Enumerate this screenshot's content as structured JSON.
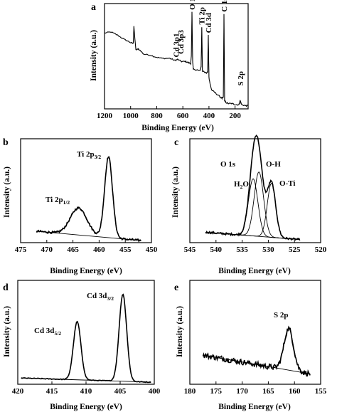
{
  "chart_data": [
    {
      "panel": "a",
      "type": "line",
      "xlabel": "Binding Energy (eV)",
      "ylabel": "Intensity (a.u.)",
      "xlim": [
        1200,
        100
      ],
      "xticks": [
        1200,
        1000,
        800,
        600,
        400,
        200
      ],
      "annotations": [
        "Cd 3p1",
        "Cd 3p3",
        "O 1s",
        "Cd 3d",
        "Ti 2p",
        "C 1s",
        "S 2p"
      ],
      "peaks": [
        {
          "x": 652,
          "y": 0.47,
          "label": "Cd 3p1"
        },
        {
          "x": 618,
          "y": 0.5,
          "label": "Cd 3p3"
        },
        {
          "x": 531,
          "y": 0.92,
          "label": "O 1s"
        },
        {
          "x": 405,
          "y": 0.7,
          "label": "Cd 3d"
        },
        {
          "x": 458,
          "y": 0.78,
          "label": "Ti 2p"
        },
        {
          "x": 284.8,
          "y": 0.9,
          "label": "C 1s"
        },
        {
          "x": 161,
          "y": 0.08,
          "label": "S 2p"
        }
      ],
      "x": [
        1200,
        1150,
        1100,
        1050,
        1000,
        980,
        975,
        960,
        940,
        900,
        850,
        800,
        760,
        700,
        660,
        640,
        610,
        580,
        560,
        540,
        535,
        530,
        525,
        520,
        500,
        470,
        460,
        455,
        450,
        420,
        410,
        405,
        400,
        390,
        380,
        350,
        320,
        300,
        290,
        285,
        280,
        270,
        250,
        220,
        200,
        170,
        161,
        150,
        120,
        100
      ],
      "y": [
        0.72,
        0.73,
        0.7,
        0.66,
        0.63,
        0.62,
        0.78,
        0.56,
        0.57,
        0.52,
        0.51,
        0.49,
        0.48,
        0.48,
        0.46,
        0.47,
        0.45,
        0.45,
        0.44,
        0.43,
        0.5,
        0.92,
        0.45,
        0.38,
        0.37,
        0.36,
        0.4,
        0.78,
        0.36,
        0.34,
        0.35,
        0.7,
        0.3,
        0.23,
        0.18,
        0.15,
        0.12,
        0.1,
        0.11,
        0.9,
        0.08,
        0.06,
        0.05,
        0.05,
        0.04,
        0.04,
        0.08,
        0.04,
        0.03,
        0.03
      ]
    },
    {
      "panel": "b",
      "type": "line",
      "xlabel": "Binding Energy (eV)",
      "ylabel": "Intensity (a.u.)",
      "xlim": [
        475,
        450
      ],
      "xticks": [
        475,
        470,
        465,
        460,
        455,
        450
      ],
      "series": [
        {
          "kind": "measured",
          "peaks": [
            {
              "x": 463.9,
              "h": 0.26,
              "w": 1.6
            },
            {
              "x": 458.2,
              "h": 0.78,
              "w": 0.75
            }
          ],
          "baseline": [
            0.11,
            0.02
          ]
        },
        {
          "kind": "fit",
          "peaks": [
            {
              "x": 463.9,
              "h": 0.26,
              "w": 1.6
            },
            {
              "x": 458.2,
              "h": 0.78,
              "w": 0.75
            }
          ],
          "baseline": [
            0.11,
            0.02
          ]
        }
      ],
      "annotations": [
        {
          "text": "Ti 2p",
          "sub": "3/2"
        },
        {
          "text": "Ti 2p",
          "sub": "1/2"
        }
      ],
      "xrange_data": [
        472,
        452
      ]
    },
    {
      "panel": "c",
      "type": "line",
      "xlabel": "Binding Energy (eV)",
      "ylabel": "Intensity (a.u.)",
      "xlim": [
        545,
        520
      ],
      "xticks": [
        545,
        540,
        535,
        530,
        525,
        520
      ],
      "series": [
        {
          "kind": "measured",
          "peaks": [
            {
              "x": 532.9,
              "h": 0.55,
              "w": 0.9
            },
            {
              "x": 531.8,
              "h": 0.62,
              "w": 0.9
            },
            {
              "x": 529.4,
              "h": 0.52,
              "w": 0.8
            }
          ],
          "baseline": [
            0.1,
            0.03
          ]
        },
        {
          "kind": "component",
          "peaks": [
            {
              "x": 532.9,
              "h": 0.55,
              "w": 0.9
            }
          ],
          "baseline": [
            0.1,
            0.03
          ]
        },
        {
          "kind": "component",
          "peaks": [
            {
              "x": 531.8,
              "h": 0.62,
              "w": 0.9
            }
          ],
          "baseline": [
            0.1,
            0.03
          ]
        },
        {
          "kind": "component",
          "peaks": [
            {
              "x": 529.4,
              "h": 0.52,
              "w": 0.8
            }
          ],
          "baseline": [
            0.1,
            0.03
          ]
        }
      ],
      "annotations": [
        {
          "text": "O 1s"
        },
        {
          "text": "O-H"
        },
        {
          "text": "H",
          "sub": "2",
          "tail": "O"
        },
        {
          "text": "O-Ti"
        }
      ],
      "xrange_data": [
        542,
        524
      ]
    },
    {
      "panel": "d",
      "type": "line",
      "xlabel": "Binding Energy (eV)",
      "ylabel": "Intensity (a.u.)",
      "xlim": [
        420,
        400
      ],
      "xticks": [
        420,
        415,
        410,
        405,
        400
      ],
      "series": [
        {
          "kind": "measured",
          "peaks": [
            {
              "x": 411.3,
              "h": 0.56,
              "w": 0.55
            },
            {
              "x": 404.6,
              "h": 0.84,
              "w": 0.55
            }
          ],
          "baseline": [
            0.06,
            0.02
          ]
        },
        {
          "kind": "fit",
          "peaks": [
            {
              "x": 411.3,
              "h": 0.56,
              "w": 0.55
            },
            {
              "x": 404.6,
              "h": 0.84,
              "w": 0.55
            }
          ],
          "baseline": [
            0.06,
            0.02
          ]
        }
      ],
      "annotations": [
        {
          "text": "Cd 3d",
          "sub": "5/2"
        },
        {
          "text": "Cd 3d",
          "sub": "3/2"
        }
      ],
      "xrange_data": [
        419.5,
        400.5
      ]
    },
    {
      "panel": "e",
      "type": "line",
      "xlabel": "Binding Energy (eV)",
      "ylabel": "Intensity (a.u.)",
      "xlim": [
        180,
        155
      ],
      "xticks": [
        180,
        175,
        170,
        165,
        160,
        155
      ],
      "series": [
        {
          "kind": "measured",
          "peaks": [
            {
              "x": 161.1,
              "h": 0.4,
              "w": 0.9
            }
          ],
          "baseline": [
            0.28,
            0.1
          ]
        },
        {
          "kind": "fit",
          "peaks": [
            {
              "x": 161.1,
              "h": 0.4,
              "w": 0.9
            }
          ],
          "baseline": [
            0.28,
            0.1
          ]
        }
      ],
      "annotations": [
        {
          "text": "S 2p"
        }
      ],
      "xrange_data": [
        177.5,
        157
      ]
    }
  ]
}
